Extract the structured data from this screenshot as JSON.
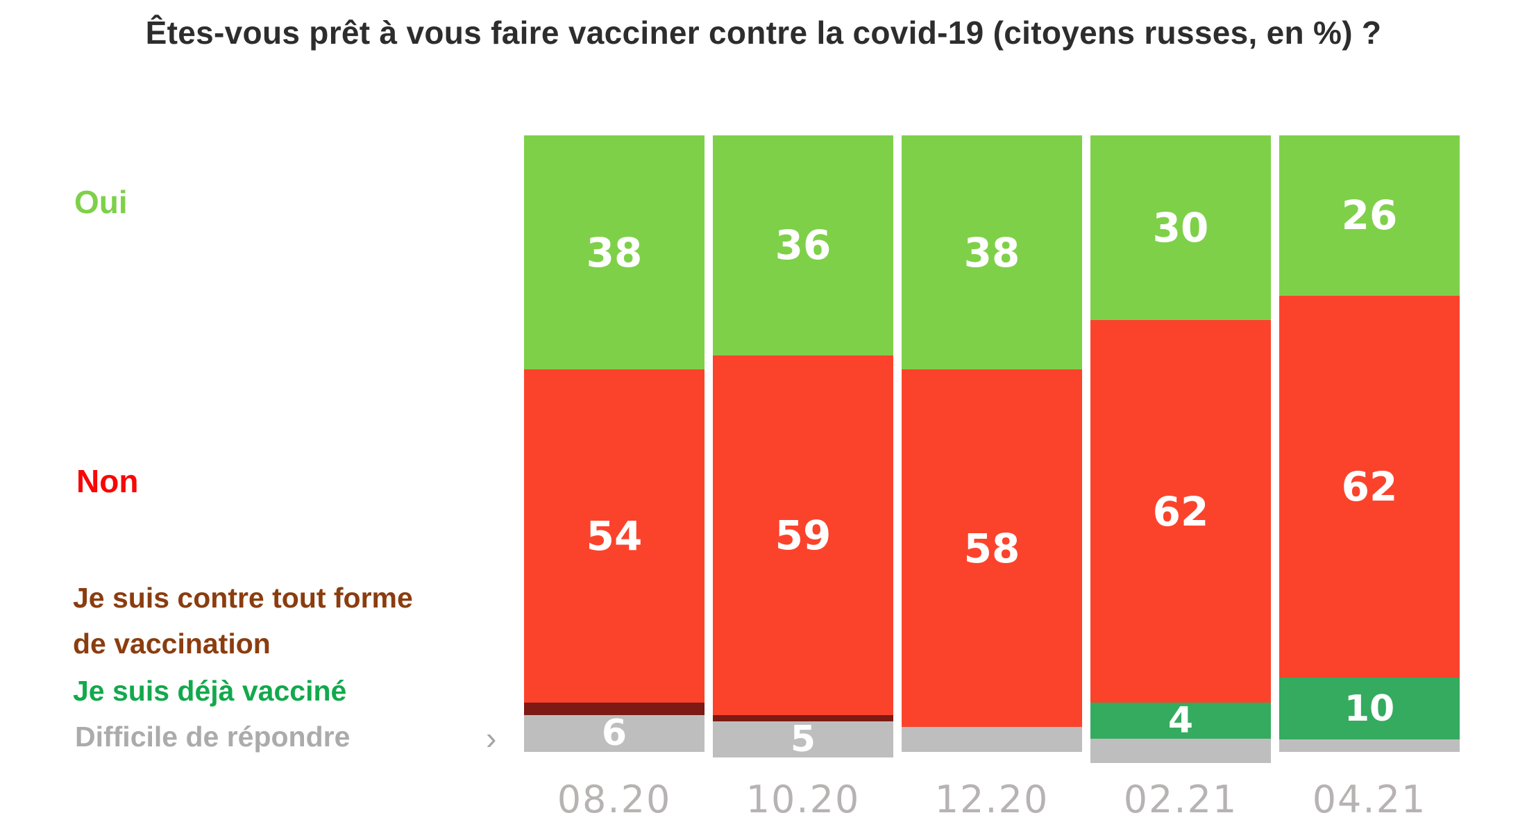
{
  "title": "Êtes-vous prêt à vous faire vacciner contre la covid-19 (citoyens russes, en %) ?",
  "legend": {
    "oui": {
      "label": "Oui",
      "color": "#7ed049"
    },
    "non": {
      "label": "Non",
      "color": "#f90606"
    },
    "contre": {
      "label": "Je suis contre tout forme\nde vaccination",
      "color": "#8a3d0f"
    },
    "vaccine": {
      "label": "Je suis déjà vacciné",
      "color": "#12a94c"
    },
    "difficile": {
      "label": "Difficile de répondre",
      "color": "#ababab"
    }
  },
  "chevron_icon": "›",
  "chart_data": {
    "type": "bar",
    "stacked": true,
    "orientation": "vertical",
    "unit": "percent",
    "title": "Êtes-vous prêt à vous faire vacciner contre la covid-19 (citoyens russes, en %) ?",
    "categories": [
      "08.20",
      "10.20",
      "12.20",
      "02.21",
      "04.21"
    ],
    "series": [
      {
        "key": "oui",
        "name": "Oui",
        "color": "#7ed049",
        "values": [
          38,
          36,
          38,
          30,
          26
        ],
        "labels": [
          "38",
          "36",
          "38",
          "30",
          "26"
        ]
      },
      {
        "key": "non",
        "name": "Non",
        "color": "#fb432c",
        "values": [
          54,
          59,
          58,
          62,
          62
        ],
        "labels": [
          "54",
          "59",
          "58",
          "62",
          "62"
        ]
      },
      {
        "key": "contre",
        "name": "Je suis contre tout forme de vaccination",
        "color": "#7d1a14",
        "values": [
          2,
          1,
          0,
          0,
          0
        ],
        "labels": [
          "",
          "",
          "",
          "",
          ""
        ]
      },
      {
        "key": "vaccine",
        "name": "Je suis déjà vacciné",
        "color": "#34ab5f",
        "values": [
          0,
          0,
          0,
          4,
          10
        ],
        "labels": [
          "",
          "",
          "",
          "4",
          "10"
        ]
      },
      {
        "key": "difficile",
        "name": "Difficile de répondre",
        "color": "#bfbebe",
        "values": [
          6,
          5,
          4,
          4,
          2
        ],
        "labels": [
          "6",
          "5",
          "",
          "",
          ""
        ]
      }
    ],
    "ylim": [
      0,
      100
    ],
    "grid": false,
    "legend_position": "left",
    "value_label_color": "#ffffff",
    "axis_label_color": "#b8b3b3"
  }
}
